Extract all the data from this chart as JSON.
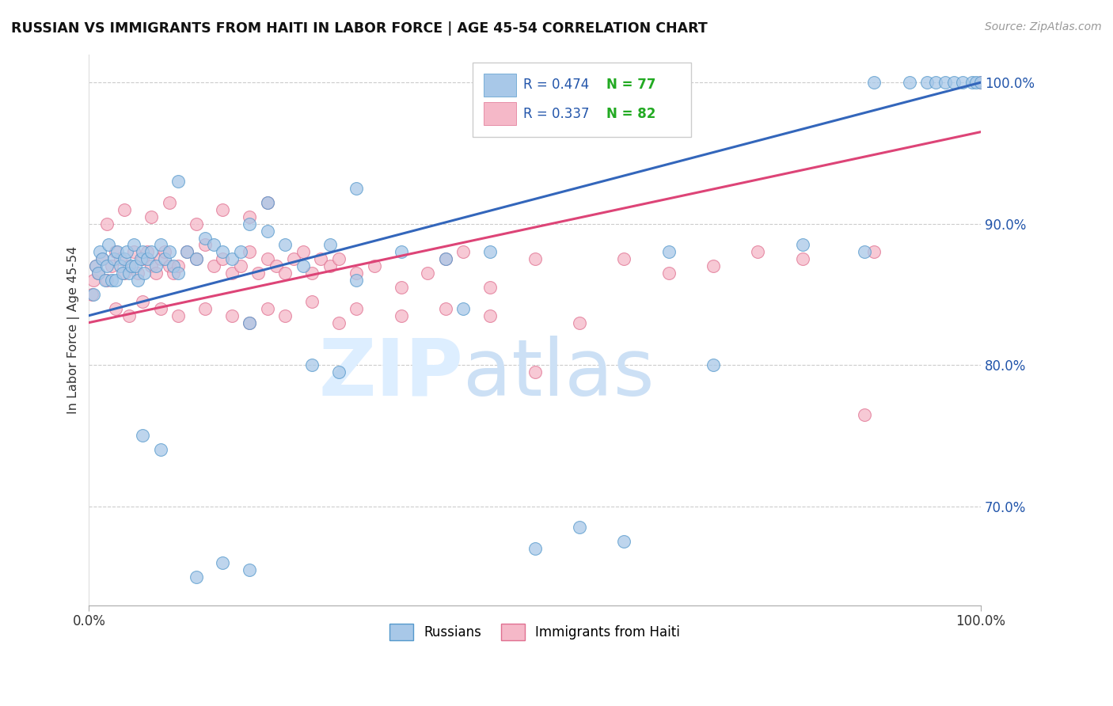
{
  "title": "RUSSIAN VS IMMIGRANTS FROM HAITI IN LABOR FORCE | AGE 45-54 CORRELATION CHART",
  "source": "Source: ZipAtlas.com",
  "ylabel": "In Labor Force | Age 45-54",
  "right_ytick_vals": [
    70,
    80,
    90,
    100
  ],
  "right_ytick_labels": [
    "70.0%",
    "80.0%",
    "90.0%",
    "100.0%"
  ],
  "legend_r1": "R = 0.474",
  "legend_n1": "N = 77",
  "legend_r2": "R = 0.337",
  "legend_n2": "N = 82",
  "blue_scatter_color": "#a8c8e8",
  "blue_edge_color": "#5599cc",
  "pink_scatter_color": "#f5b8c8",
  "pink_edge_color": "#e07090",
  "blue_line_color": "#3366bb",
  "pink_line_color": "#dd4477",
  "legend_text_color": "#2255aa",
  "legend_n_color": "#22aa22",
  "background_color": "#ffffff",
  "grid_color": "#cccccc",
  "title_color": "#111111",
  "source_color": "#999999",
  "watermark_zip_color": "#ddeeff",
  "watermark_atlas_color": "#cce0f5",
  "xlim": [
    0,
    100
  ],
  "ylim": [
    63,
    102
  ],
  "blue_line_x0": 0,
  "blue_line_y0": 83.5,
  "blue_line_x1": 100,
  "blue_line_y1": 100.0,
  "pink_line_x0": 0,
  "pink_line_y0": 83.0,
  "pink_line_x1": 100,
  "pink_line_y1": 96.5,
  "russians_x": [
    0.5,
    0.8,
    1.0,
    1.2,
    1.5,
    1.8,
    2.0,
    2.2,
    2.5,
    2.8,
    3.0,
    3.2,
    3.5,
    3.8,
    4.0,
    4.2,
    4.5,
    4.8,
    5.0,
    5.2,
    5.5,
    5.8,
    6.0,
    6.2,
    6.5,
    7.0,
    7.5,
    8.0,
    8.5,
    9.0,
    9.5,
    10.0,
    11.0,
    12.0,
    13.0,
    14.0,
    15.0,
    16.0,
    17.0,
    18.0,
    20.0,
    22.0,
    24.0,
    27.0,
    30.0,
    35.0,
    40.0,
    45.0,
    50.0,
    55.0,
    60.0,
    65.0,
    70.0,
    80.0,
    87.0,
    18.0,
    25.0,
    10.0,
    30.0,
    20.0,
    28.0,
    42.0,
    88.0,
    92.0,
    94.0,
    95.0,
    96.0,
    97.0,
    98.0,
    99.0,
    99.5,
    100.0,
    6.0,
    8.0,
    12.0,
    15.0,
    18.0
  ],
  "russians_y": [
    85.0,
    87.0,
    86.5,
    88.0,
    87.5,
    86.0,
    87.0,
    88.5,
    86.0,
    87.5,
    86.0,
    88.0,
    87.0,
    86.5,
    87.5,
    88.0,
    86.5,
    87.0,
    88.5,
    87.0,
    86.0,
    87.5,
    88.0,
    86.5,
    87.5,
    88.0,
    87.0,
    88.5,
    87.5,
    88.0,
    87.0,
    86.5,
    88.0,
    87.5,
    89.0,
    88.5,
    88.0,
    87.5,
    88.0,
    90.0,
    89.5,
    88.5,
    87.0,
    88.5,
    86.0,
    88.0,
    87.5,
    88.0,
    67.0,
    68.5,
    67.5,
    88.0,
    80.0,
    88.5,
    88.0,
    83.0,
    80.0,
    93.0,
    92.5,
    91.5,
    79.5,
    84.0,
    100.0,
    100.0,
    100.0,
    100.0,
    100.0,
    100.0,
    100.0,
    100.0,
    100.0,
    100.0,
    75.0,
    74.0,
    65.0,
    66.0,
    65.5
  ],
  "haiti_x": [
    0.3,
    0.5,
    0.8,
    1.0,
    1.5,
    2.0,
    2.5,
    3.0,
    3.5,
    4.0,
    4.5,
    5.0,
    5.5,
    6.0,
    6.5,
    7.0,
    7.5,
    8.0,
    8.5,
    9.0,
    9.5,
    10.0,
    11.0,
    12.0,
    13.0,
    14.0,
    15.0,
    16.0,
    17.0,
    18.0,
    19.0,
    20.0,
    21.0,
    22.0,
    23.0,
    24.0,
    25.0,
    26.0,
    27.0,
    28.0,
    30.0,
    32.0,
    35.0,
    38.0,
    40.0,
    42.0,
    45.0,
    50.0,
    55.0,
    50.0,
    60.0,
    65.0,
    70.0,
    75.0,
    80.0,
    88.0,
    3.0,
    4.5,
    6.0,
    8.0,
    10.0,
    13.0,
    16.0,
    18.0,
    20.0,
    22.0,
    25.0,
    28.0,
    30.0,
    35.0,
    40.0,
    45.0,
    2.0,
    4.0,
    7.0,
    9.0,
    12.0,
    15.0,
    18.0,
    20.0,
    100.0,
    87.0
  ],
  "haiti_y": [
    85.0,
    86.0,
    87.0,
    86.5,
    87.5,
    86.0,
    87.0,
    88.0,
    87.5,
    86.5,
    87.0,
    88.0,
    86.5,
    87.5,
    88.0,
    87.0,
    86.5,
    87.5,
    88.0,
    87.0,
    86.5,
    87.0,
    88.0,
    87.5,
    88.5,
    87.0,
    87.5,
    86.5,
    87.0,
    88.0,
    86.5,
    87.5,
    87.0,
    86.5,
    87.5,
    88.0,
    86.5,
    87.5,
    87.0,
    87.5,
    86.5,
    87.0,
    85.5,
    86.5,
    87.5,
    88.0,
    85.5,
    87.5,
    83.0,
    79.5,
    87.5,
    86.5,
    87.0,
    88.0,
    87.5,
    88.0,
    84.0,
    83.5,
    84.5,
    84.0,
    83.5,
    84.0,
    83.5,
    83.0,
    84.0,
    83.5,
    84.5,
    83.0,
    84.0,
    83.5,
    84.0,
    83.5,
    90.0,
    91.0,
    90.5,
    91.5,
    90.0,
    91.0,
    90.5,
    91.5,
    100.0,
    76.5
  ]
}
